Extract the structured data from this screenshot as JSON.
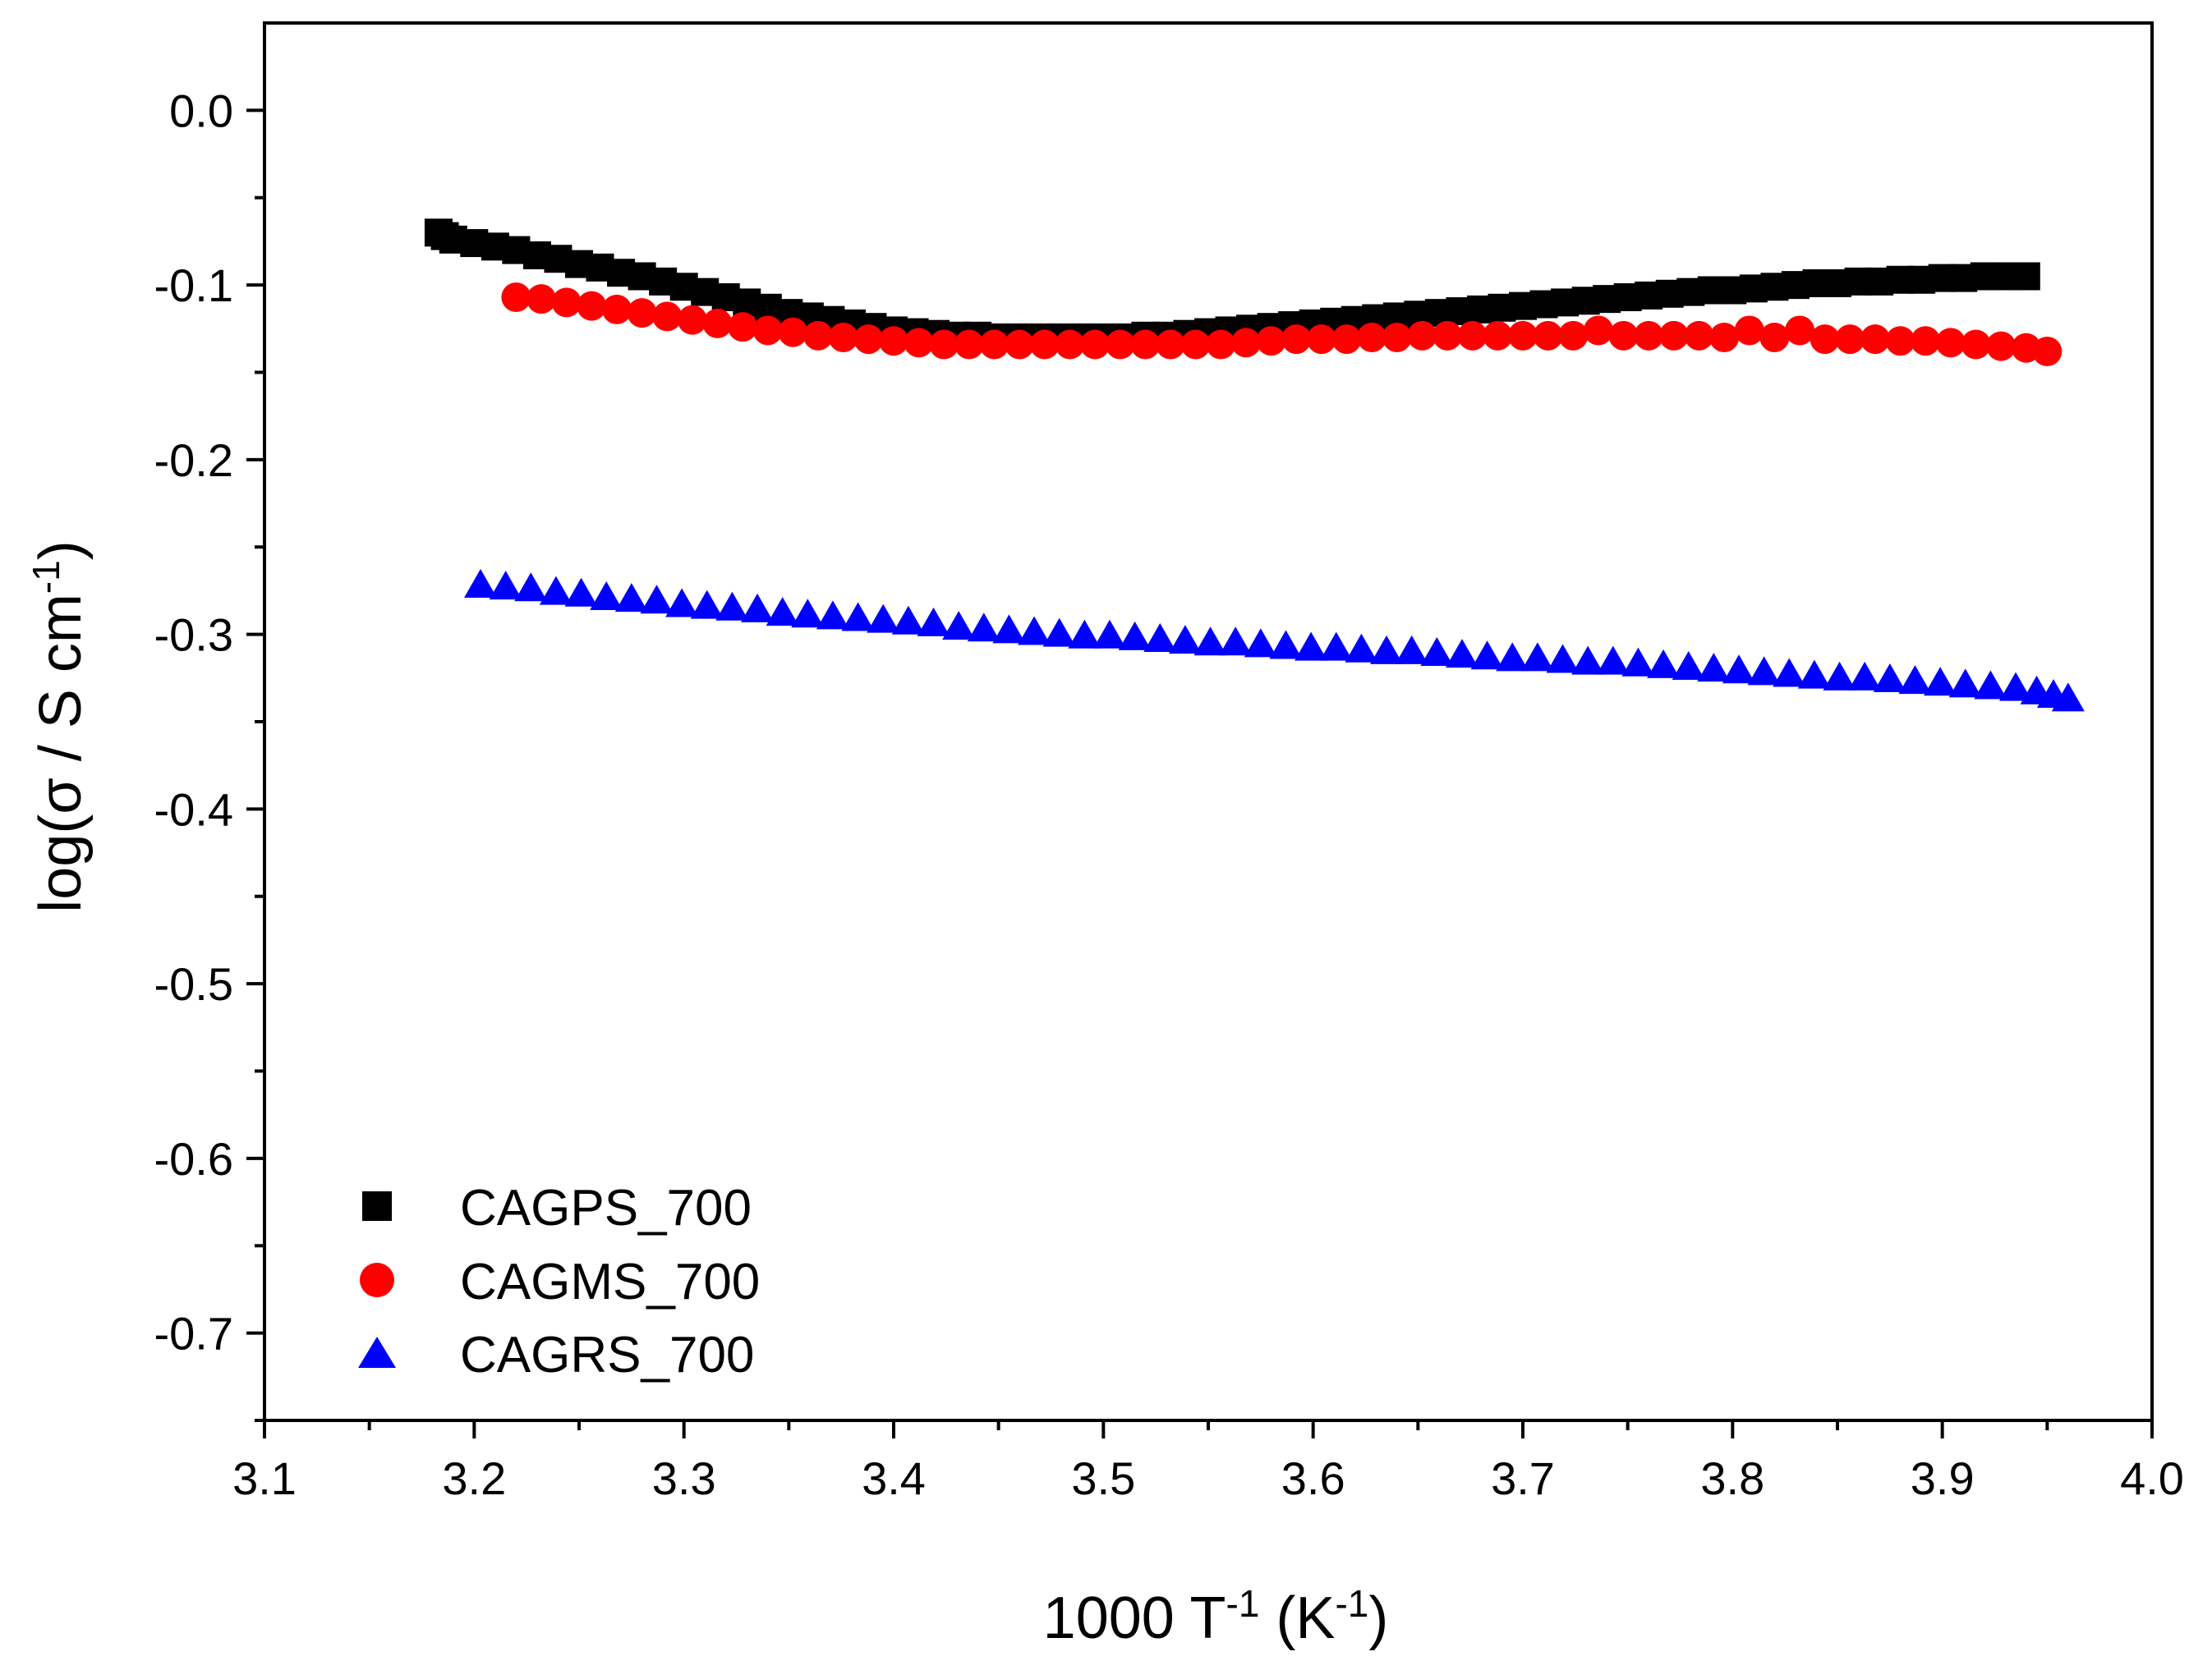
{
  "chart_data": {
    "type": "scatter",
    "xlabel": {
      "main": "1000 T",
      "sup1": "-1",
      "mid": " (K",
      "sup2": "-1",
      "end": ")"
    },
    "ylabel": {
      "main": "log(σ / S cm",
      "sup": "-1",
      "end": ")"
    },
    "xlim": [
      3.1,
      4.0
    ],
    "ylim": [
      -0.75,
      0.05
    ],
    "xticks": [
      "3.1",
      "3.2",
      "3.3",
      "3.4",
      "3.5",
      "3.6",
      "3.7",
      "3.8",
      "3.9",
      "4.0"
    ],
    "yticks": [
      "0.0",
      "-0.1",
      "-0.2",
      "-0.3",
      "-0.4",
      "-0.5",
      "-0.6",
      "-0.7"
    ],
    "legend_position": "bottom-left",
    "series": [
      {
        "name": "CAGPS_700",
        "marker": "square",
        "color": "#000000",
        "x": [
          3.183,
          3.186,
          3.19,
          3.2,
          3.21,
          3.22,
          3.23,
          3.24,
          3.25,
          3.26,
          3.27,
          3.28,
          3.29,
          3.3,
          3.31,
          3.32,
          3.33,
          3.34,
          3.35,
          3.36,
          3.37,
          3.38,
          3.39,
          3.4,
          3.41,
          3.42,
          3.43,
          3.44,
          3.45,
          3.46,
          3.47,
          3.48,
          3.49,
          3.5,
          3.51,
          3.52,
          3.53,
          3.54,
          3.55,
          3.56,
          3.57,
          3.58,
          3.59,
          3.6,
          3.61,
          3.62,
          3.63,
          3.64,
          3.65,
          3.66,
          3.67,
          3.68,
          3.69,
          3.7,
          3.71,
          3.72,
          3.73,
          3.74,
          3.75,
          3.76,
          3.77,
          3.78,
          3.79,
          3.8,
          3.81,
          3.82,
          3.83,
          3.84,
          3.85,
          3.86,
          3.87,
          3.88,
          3.89,
          3.9,
          3.91,
          3.92,
          3.93,
          3.94
        ],
        "y": [
          -0.07,
          -0.072,
          -0.074,
          -0.076,
          -0.078,
          -0.08,
          -0.083,
          -0.085,
          -0.088,
          -0.09,
          -0.093,
          -0.095,
          -0.098,
          -0.101,
          -0.104,
          -0.107,
          -0.11,
          -0.113,
          -0.116,
          -0.118,
          -0.12,
          -0.122,
          -0.124,
          -0.126,
          -0.127,
          -0.128,
          -0.129,
          -0.129,
          -0.13,
          -0.13,
          -0.13,
          -0.13,
          -0.13,
          -0.13,
          -0.13,
          -0.129,
          -0.129,
          -0.128,
          -0.127,
          -0.126,
          -0.125,
          -0.124,
          -0.123,
          -0.122,
          -0.121,
          -0.12,
          -0.119,
          -0.118,
          -0.117,
          -0.116,
          -0.115,
          -0.114,
          -0.113,
          -0.112,
          -0.111,
          -0.11,
          -0.109,
          -0.108,
          -0.107,
          -0.106,
          -0.105,
          -0.104,
          -0.103,
          -0.103,
          -0.102,
          -0.101,
          -0.1,
          -0.099,
          -0.099,
          -0.098,
          -0.098,
          -0.097,
          -0.097,
          -0.096,
          -0.096,
          -0.095,
          -0.095,
          -0.095
        ]
      },
      {
        "name": "CAGMS_700",
        "marker": "circle",
        "color": "#ff0000",
        "x": [
          3.22,
          3.232,
          3.244,
          3.256,
          3.268,
          3.28,
          3.292,
          3.304,
          3.316,
          3.328,
          3.34,
          3.352,
          3.364,
          3.376,
          3.388,
          3.4,
          3.412,
          3.424,
          3.436,
          3.448,
          3.46,
          3.472,
          3.484,
          3.496,
          3.508,
          3.52,
          3.532,
          3.544,
          3.556,
          3.568,
          3.58,
          3.592,
          3.604,
          3.616,
          3.628,
          3.64,
          3.652,
          3.664,
          3.676,
          3.688,
          3.7,
          3.712,
          3.724,
          3.736,
          3.748,
          3.76,
          3.772,
          3.784,
          3.796,
          3.808,
          3.82,
          3.832,
          3.844,
          3.856,
          3.868,
          3.88,
          3.892,
          3.904,
          3.916,
          3.928,
          3.94,
          3.95
        ],
        "y": [
          -0.107,
          -0.108,
          -0.11,
          -0.112,
          -0.114,
          -0.116,
          -0.118,
          -0.12,
          -0.122,
          -0.124,
          -0.126,
          -0.127,
          -0.129,
          -0.13,
          -0.131,
          -0.132,
          -0.133,
          -0.134,
          -0.134,
          -0.134,
          -0.134,
          -0.134,
          -0.134,
          -0.134,
          -0.134,
          -0.134,
          -0.134,
          -0.134,
          -0.134,
          -0.133,
          -0.132,
          -0.131,
          -0.131,
          -0.131,
          -0.13,
          -0.13,
          -0.129,
          -0.129,
          -0.129,
          -0.129,
          -0.129,
          -0.129,
          -0.129,
          -0.126,
          -0.129,
          -0.129,
          -0.129,
          -0.129,
          -0.13,
          -0.126,
          -0.13,
          -0.126,
          -0.131,
          -0.131,
          -0.131,
          -0.132,
          -0.132,
          -0.133,
          -0.134,
          -0.135,
          -0.136,
          -0.138
        ]
      },
      {
        "name": "CAGRS_700",
        "marker": "triangle",
        "color": "#0000ff",
        "x": [
          3.203,
          3.215,
          3.227,
          3.239,
          3.251,
          3.263,
          3.275,
          3.287,
          3.299,
          3.311,
          3.323,
          3.335,
          3.347,
          3.359,
          3.371,
          3.383,
          3.395,
          3.407,
          3.419,
          3.431,
          3.443,
          3.455,
          3.467,
          3.479,
          3.491,
          3.503,
          3.515,
          3.527,
          3.539,
          3.551,
          3.563,
          3.575,
          3.587,
          3.599,
          3.611,
          3.623,
          3.635,
          3.647,
          3.659,
          3.671,
          3.683,
          3.695,
          3.707,
          3.719,
          3.731,
          3.743,
          3.755,
          3.767,
          3.779,
          3.791,
          3.803,
          3.815,
          3.827,
          3.839,
          3.851,
          3.863,
          3.875,
          3.887,
          3.899,
          3.911,
          3.923,
          3.935,
          3.945,
          3.953,
          3.96
        ],
        "y": [
          -0.272,
          -0.273,
          -0.274,
          -0.276,
          -0.277,
          -0.279,
          -0.28,
          -0.281,
          -0.283,
          -0.284,
          -0.285,
          -0.286,
          -0.288,
          -0.289,
          -0.29,
          -0.291,
          -0.292,
          -0.293,
          -0.294,
          -0.296,
          -0.297,
          -0.298,
          -0.299,
          -0.3,
          -0.301,
          -0.301,
          -0.302,
          -0.303,
          -0.304,
          -0.305,
          -0.305,
          -0.306,
          -0.307,
          -0.308,
          -0.308,
          -0.309,
          -0.31,
          -0.31,
          -0.311,
          -0.312,
          -0.313,
          -0.314,
          -0.314,
          -0.315,
          -0.316,
          -0.316,
          -0.317,
          -0.318,
          -0.319,
          -0.32,
          -0.321,
          -0.322,
          -0.323,
          -0.324,
          -0.325,
          -0.325,
          -0.326,
          -0.327,
          -0.328,
          -0.329,
          -0.33,
          -0.331,
          -0.333,
          -0.335,
          -0.337
        ]
      }
    ]
  }
}
